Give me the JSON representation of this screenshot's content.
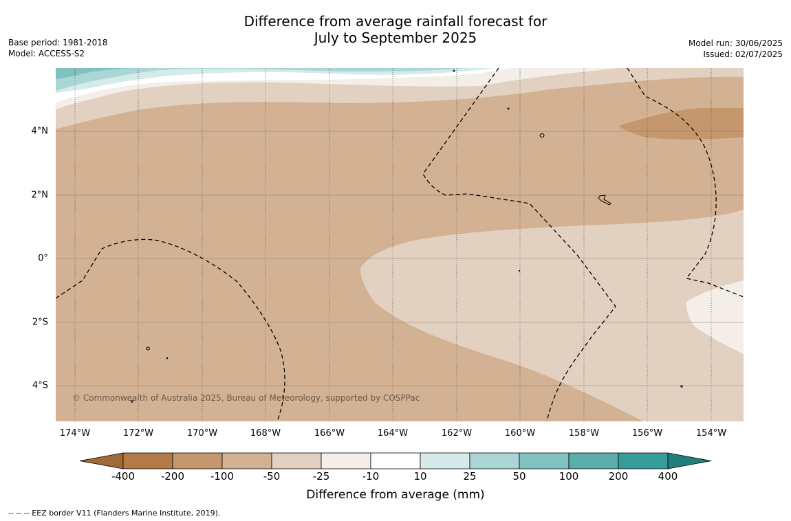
{
  "title_line1": "Difference from average rainfall forecast for",
  "title_line2": "July to September 2025",
  "meta_left": {
    "base_period": "Base period: 1981-2018",
    "model": "Model: ACCESS-S2"
  },
  "meta_right": {
    "model_run": "Model run: 30/06/2025",
    "issued": "Issued: 02/07/2025"
  },
  "lat_labels": [
    "4°N",
    "2°N",
    "0°",
    "2°S",
    "4°S"
  ],
  "lon_labels": [
    "174°W",
    "172°W",
    "170°W",
    "168°W",
    "166°W",
    "164°W",
    "162°W",
    "160°W",
    "158°W",
    "156°W",
    "154°W"
  ],
  "colorbar": {
    "tick_labels": [
      "-400",
      "-200",
      "-100",
      "-50",
      "-25",
      "-10",
      "10",
      "25",
      "50",
      "100",
      "200",
      "400"
    ],
    "colors": [
      "#9f6a35",
      "#b37a45",
      "#c4976c",
      "#d3b193",
      "#e2d0c0",
      "#f3eee8",
      "#ffffff",
      "#d5ebe9",
      "#aad7d6",
      "#7fc2c0",
      "#59aeac",
      "#359d9b",
      "#217e7c"
    ],
    "title": "Difference from average (mm)"
  },
  "copyright": "© Commonwealth of Australia 2025, Bureau of Meteorology, supported by COSPPac",
  "footnote": "--  --  -- EEZ border V11 (Flanders Marine Institute, 2019)."
}
